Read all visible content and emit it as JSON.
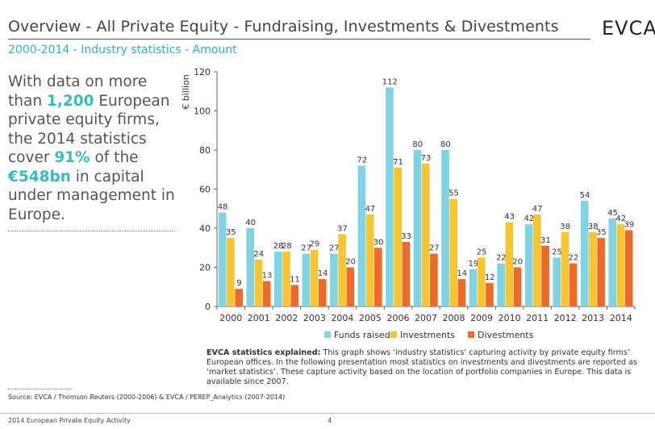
{
  "header": {
    "title": "Overview - All Private Equity - Fundraising, Investments & Divestments",
    "logo": "EVCA",
    "subtitle": "2000-2014 - Industry statistics - Amount"
  },
  "intro": {
    "p1": "With data on more than ",
    "h1": "1,200",
    "p2": " European private equity firms, the 2014 statistics cover ",
    "h2": "91%",
    "p3": " of the ",
    "h3": "€548bn",
    "p4": " in capital under management in Europe."
  },
  "chart_data": {
    "type": "bar",
    "ylabel": "€ billion",
    "ylim": [
      0,
      120
    ],
    "yticks": [
      0,
      20,
      40,
      60,
      80,
      100,
      120
    ],
    "grid": false,
    "legend_position": "bottom",
    "categories": [
      "2000",
      "2001",
      "2002",
      "2003",
      "2004",
      "2005",
      "2006",
      "2007",
      "2008",
      "2009",
      "2010",
      "2011",
      "2012",
      "2013",
      "2014"
    ],
    "series": [
      {
        "name": "Funds raised",
        "color": "#7fd3e3",
        "values": [
          48,
          40,
          28,
          27,
          27,
          72,
          112,
          80,
          80,
          19,
          22,
          42,
          25,
          54,
          45
        ]
      },
      {
        "name": "Investments",
        "color": "#f7c531",
        "values": [
          35,
          24,
          28,
          29,
          37,
          47,
          71,
          73,
          55,
          25,
          43,
          47,
          38,
          38,
          42
        ]
      },
      {
        "name": "Divestments",
        "color": "#ef6a29",
        "values": [
          9,
          13,
          11,
          14,
          20,
          30,
          33,
          27,
          14,
          12,
          20,
          31,
          22,
          35,
          39
        ]
      }
    ]
  },
  "explanation": {
    "lead": "EVCA statistics explained:",
    "body": " This graph shows ‘industry statistics’ capturing activity by private equity firms’ European offices. In the following presentation most statistics on investments and divestments are reported as ‘market statistics’. These capture activity based on the location of portfolio companies in Europe. This data is available since 2007."
  },
  "source": "Source: EVCA / Thomson Reuters (2000-2006) & EVCA / PEREP_Analytics (2007-2014)",
  "footer": {
    "left": "2014 European Private Equity Activity",
    "page": "4"
  }
}
